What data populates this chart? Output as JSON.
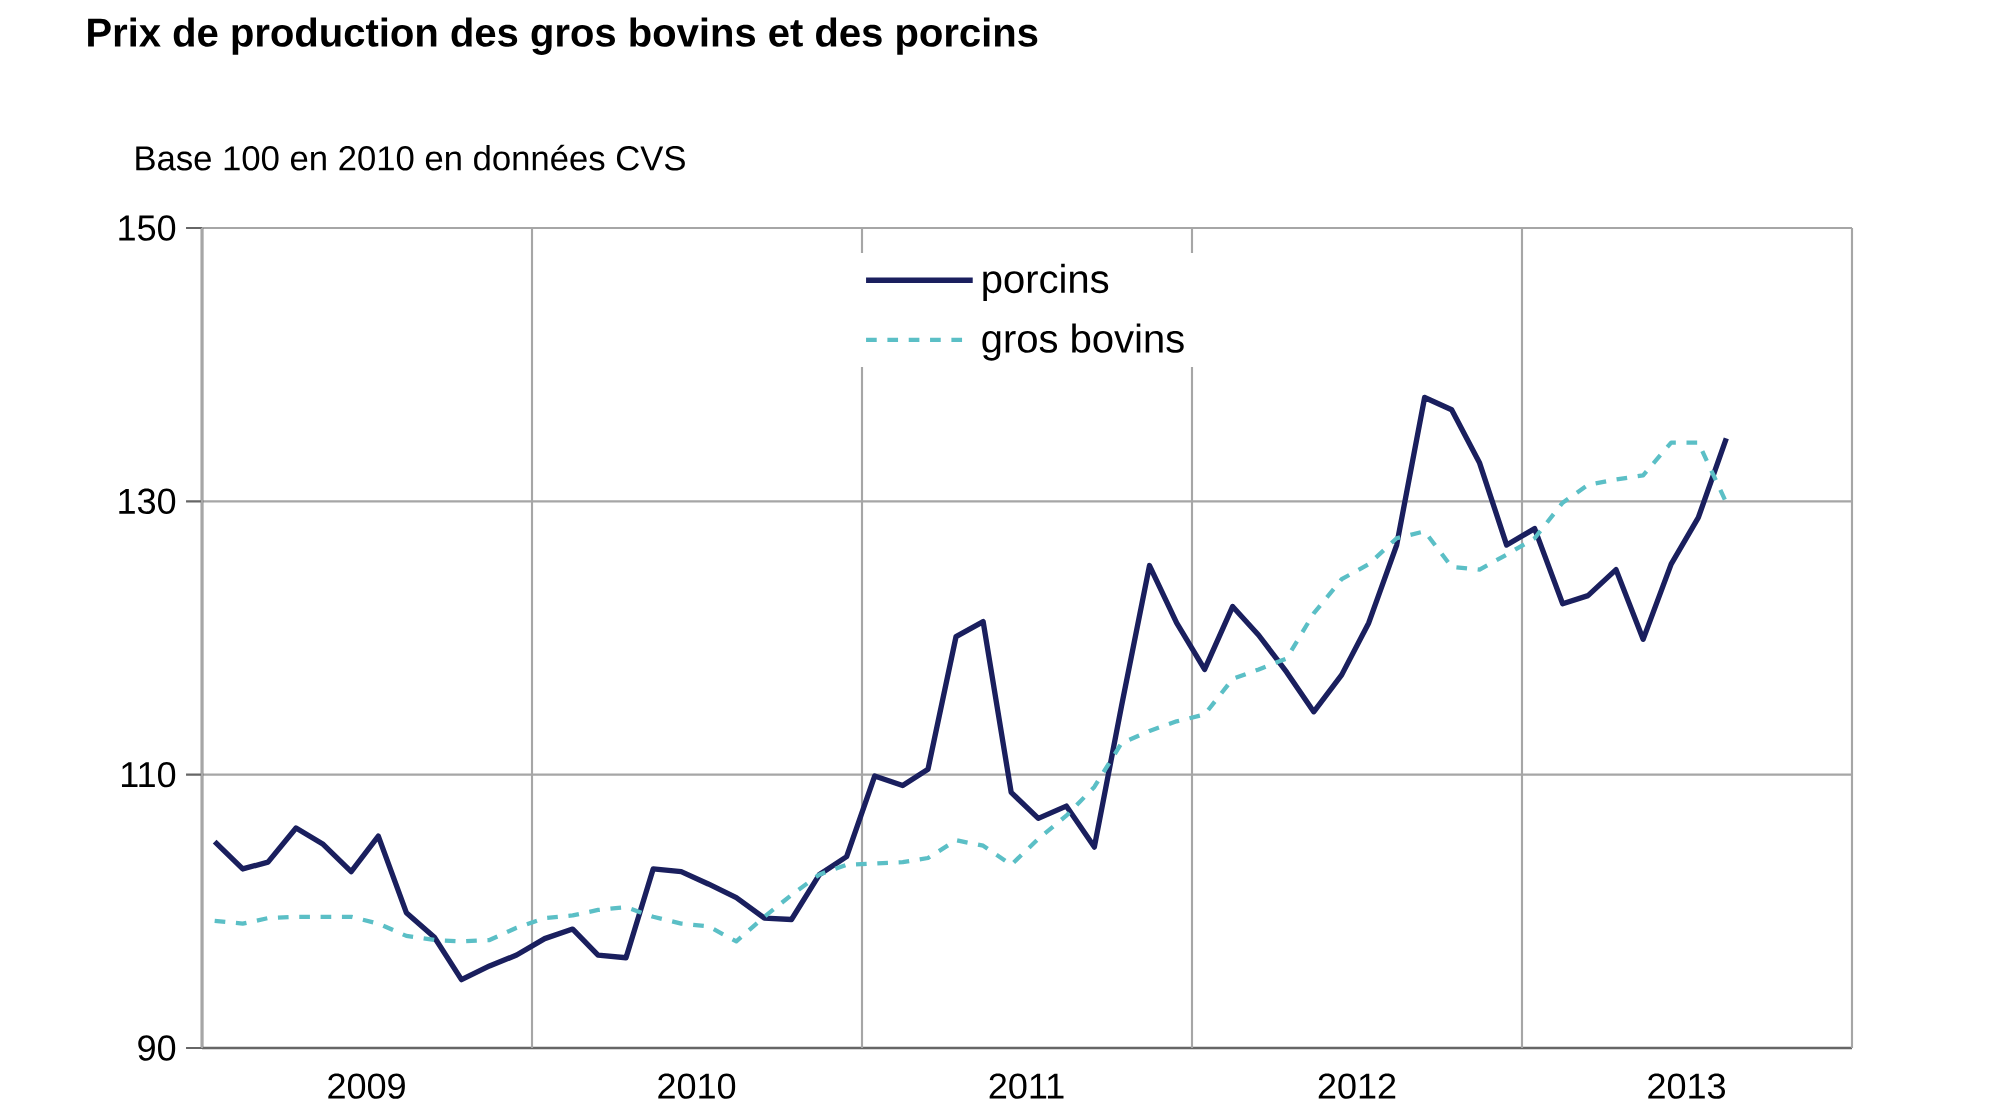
{
  "chart_data": {
    "type": "line",
    "title": "Prix de production des gros bovins et des porcins",
    "ylabel": "Base 100 en 2010 en données CVS",
    "x": [
      "2009-01-15",
      "2009-02-15",
      "2009-03-15",
      "2009-04-15",
      "2009-05-15",
      "2009-06-15",
      "2009-07-15",
      "2009-08-15",
      "2009-09-15",
      "2009-10-15",
      "2009-11-15",
      "2009-12-15",
      "2010-01-15",
      "2010-02-15",
      "2010-03-15",
      "2010-04-15",
      "2010-05-15",
      "2010-06-15",
      "2010-07-15",
      "2010-08-15",
      "2010-09-15",
      "2010-10-15",
      "2010-11-15",
      "2010-12-15",
      "2011-01-15",
      "2011-02-15",
      "2011-03-15",
      "2011-04-15",
      "2011-05-15",
      "2011-06-15",
      "2011-07-15",
      "2011-08-15",
      "2011-09-15",
      "2011-10-15",
      "2011-11-15",
      "2011-12-15",
      "2012-01-15",
      "2012-02-15",
      "2012-03-15",
      "2012-04-15",
      "2012-05-15",
      "2012-06-15",
      "2012-07-15",
      "2012-08-15",
      "2012-09-15",
      "2012-10-15",
      "2012-11-15",
      "2012-12-15",
      "2013-01-15",
      "2013-02-15",
      "2013-03-15",
      "2013-04-15",
      "2013-05-15",
      "2013-06-15",
      "2013-07-15",
      "2013-08-15"
    ],
    "series": [
      {
        "name": "porcins",
        "color": "#1a1f5e",
        "line_style": "solid",
        "values": [
          105.1,
          103.1,
          103.6,
          106.1,
          104.9,
          102.9,
          105.5,
          99.9,
          98.1,
          95.0,
          96.0,
          96.8,
          98.0,
          98.7,
          96.8,
          96.6,
          103.1,
          102.9,
          102.0,
          101.0,
          99.5,
          99.4,
          102.7,
          104.0,
          109.9,
          109.2,
          110.4,
          120.1,
          121.2,
          108.7,
          106.8,
          107.7,
          104.7,
          115.0,
          125.3,
          121.1,
          117.7,
          122.3,
          120.2,
          117.5,
          114.6,
          117.3,
          121.1,
          126.8,
          137.6,
          136.7,
          132.8,
          126.8,
          128.0,
          122.5,
          123.1,
          125.0,
          119.9,
          125.4,
          128.8,
          134.6
        ]
      },
      {
        "name": "gros bovins",
        "color": "#5bbfc6",
        "line_style": "dashed",
        "values": [
          99.3,
          99.1,
          99.5,
          99.6,
          99.6,
          99.6,
          99.1,
          98.2,
          97.9,
          97.8,
          97.9,
          98.8,
          99.5,
          99.7,
          100.1,
          100.3,
          99.6,
          99.1,
          98.9,
          97.8,
          99.6,
          101.2,
          102.7,
          103.4,
          103.5,
          103.6,
          103.9,
          105.2,
          104.8,
          103.4,
          105.3,
          107.0,
          109.1,
          112.3,
          113.2,
          113.9,
          114.4,
          117.0,
          117.7,
          118.5,
          121.8,
          124.3,
          125.4,
          127.3,
          127.8,
          125.2,
          125.0,
          126.1,
          127.3,
          129.9,
          131.2,
          131.6,
          131.9,
          134.3,
          134.3,
          129.9
        ]
      }
    ],
    "xlim": [
      "2009-01-01",
      "2014-01-01"
    ],
    "xticks": [
      {
        "value": "2009-01-01",
        "label": null
      },
      {
        "value": "2009-07-02",
        "label": "2009"
      },
      {
        "value": "2010-01-01",
        "label": null
      },
      {
        "value": "2010-07-02",
        "label": "2010"
      },
      {
        "value": "2011-01-01",
        "label": null
      },
      {
        "value": "2011-07-02",
        "label": "2011"
      },
      {
        "value": "2012-01-01",
        "label": null
      },
      {
        "value": "2012-07-02",
        "label": "2012"
      },
      {
        "value": "2013-01-01",
        "label": null
      },
      {
        "value": "2013-07-02",
        "label": "2013"
      },
      {
        "value": "2014-01-01",
        "label": null
      }
    ],
    "ylim": [
      90,
      150
    ],
    "yticks": [
      90,
      110,
      130,
      150
    ],
    "grid": true,
    "legend": "top",
    "marker": "none"
  }
}
